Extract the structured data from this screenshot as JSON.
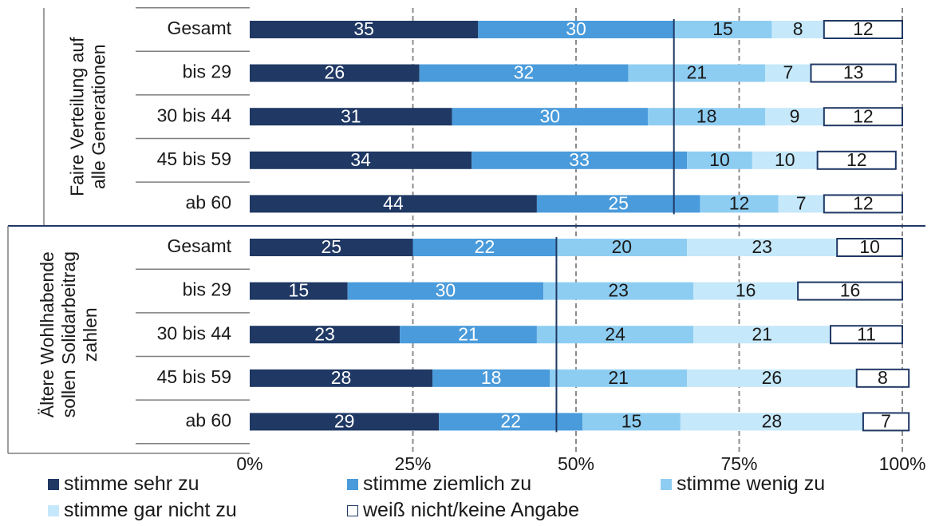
{
  "chart_data": {
    "type": "bar",
    "orientation": "horizontal",
    "stacked": "percent",
    "x_ticks": [
      "0%",
      "25%",
      "50%",
      "75%",
      "100%"
    ],
    "xlim": [
      0,
      100
    ],
    "grid": "vertical dashed",
    "legend_position": "bottom",
    "groups": [
      {
        "label": "Faire Verteilung auf alle Generationen",
        "label_lines": [
          "Faire Verteilung auf",
          "alle Generationen"
        ],
        "reference_line": 65,
        "categories": [
          "Gesamt",
          "bis 29",
          "30 bis 44",
          "45 bis 59",
          "ab 60"
        ]
      },
      {
        "label": "Ältere Wohlhabende sollen Solidarbeitrag zahlen",
        "label_lines": [
          "Ältere Wohlhabende",
          "sollen Solidarbeitrag",
          "zahlen"
        ],
        "reference_line": 47,
        "categories": [
          "Gesamt",
          "bis 29",
          "30 bis 44",
          "45 bis 59",
          "ab 60"
        ]
      }
    ],
    "series": [
      {
        "name": "stimme sehr zu",
        "color": "#1f3864",
        "values": [
          35,
          26,
          31,
          34,
          44,
          25,
          15,
          23,
          28,
          29
        ]
      },
      {
        "name": "stimme ziemlich zu",
        "color": "#4a9bdb",
        "values": [
          30,
          32,
          30,
          33,
          25,
          22,
          30,
          21,
          18,
          22
        ]
      },
      {
        "name": "stimme wenig zu",
        "color": "#8ecdf2",
        "values": [
          15,
          21,
          18,
          10,
          12,
          20,
          23,
          24,
          21,
          15
        ]
      },
      {
        "name": "stimme gar nicht zu",
        "color": "#c5e8fa",
        "values": [
          8,
          7,
          9,
          10,
          7,
          23,
          16,
          21,
          26,
          28
        ]
      },
      {
        "name": "weiß nicht/keine Angabe",
        "color": "#ffffff",
        "border": "#1f3864",
        "values": [
          12,
          13,
          12,
          12,
          12,
          10,
          16,
          11,
          8,
          7
        ]
      }
    ]
  }
}
